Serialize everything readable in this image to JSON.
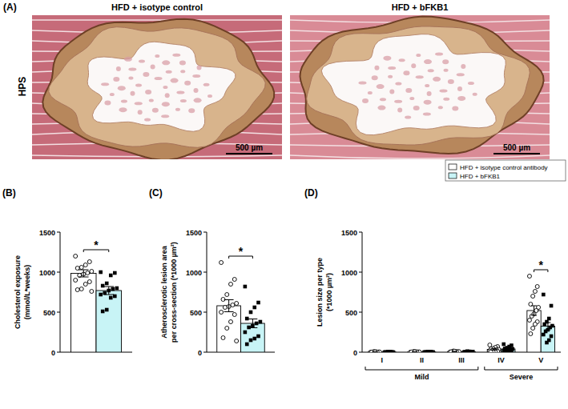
{
  "panel_a": {
    "label": "(A)",
    "stain": "HPS",
    "images": [
      {
        "title": "HFD + isotype control",
        "scale_bar": "500 µm"
      },
      {
        "title": "HFD + bFKB1",
        "scale_bar": "500 µm"
      }
    ]
  },
  "chart_data": [
    {
      "type": "bar",
      "panel_label": "(B)",
      "y_label": [
        "Cholesterol exposure",
        "(mmol/L*weeks)"
      ],
      "categories": [
        null
      ],
      "ylim": [
        0,
        1500
      ],
      "yticks": [
        0,
        500,
        1000,
        1500
      ],
      "tick_labels": "y",
      "grid": false,
      "legend": "right",
      "significance": [
        "*"
      ],
      "series": [
        {
          "name": "HFD + isotype control antibody",
          "color": "#ffffff",
          "marker": "circle-open",
          "values": [
            985
          ],
          "errors": [
            45
          ],
          "points": [
            [
              1200,
              1130,
              1090,
              1060,
              1050,
              1010,
              990,
              975,
              960,
              900,
              880,
              850,
              790,
              780,
              760
            ]
          ]
        },
        {
          "name": "HFD + bFKB1",
          "color": "#c8f4f6",
          "marker": "square",
          "values": [
            770
          ],
          "errors": [
            50
          ],
          "points": [
            [
              1000,
              990,
              960,
              860,
              830,
              800,
              790,
              770,
              740,
              720,
              700,
              680,
              530,
              510
            ]
          ]
        }
      ]
    },
    {
      "type": "bar",
      "panel_label": "(C)",
      "y_label": [
        "Atherosclerotic lesion area",
        "per cross-section (*1000 µm²)"
      ],
      "categories": [
        null
      ],
      "ylim": [
        0,
        1500
      ],
      "yticks": [
        0,
        500,
        1000,
        1500
      ],
      "tick_labels": "y",
      "grid": false,
      "significance": [
        "*"
      ],
      "series": [
        {
          "color": "#ffffff",
          "marker": "circle-open",
          "values": [
            580
          ],
          "errors": [
            75
          ],
          "points": [
            [
              1120,
              910,
              850,
              720,
              660,
              610,
              590,
              570,
              560,
              500,
              470,
              380,
              300,
              180,
              140
            ]
          ]
        },
        {
          "color": "#c8f4f6",
          "marker": "square",
          "values": [
            360
          ],
          "errors": [
            55
          ],
          "points": [
            [
              820,
              620,
              560,
              500,
              420,
              380,
              360,
              330,
              310,
              250,
              200,
              170,
              150,
              100
            ]
          ]
        }
      ]
    },
    {
      "type": "bar",
      "panel_label": "(D)",
      "y_label": [
        "Lesion size per type",
        "(*1000 µm²)"
      ],
      "categories": [
        "I",
        "II",
        "III",
        "IV",
        "V"
      ],
      "ylim": [
        0,
        1500
      ],
      "yticks": [
        0,
        500,
        1000,
        1500
      ],
      "grid": false,
      "significance": [
        null,
        null,
        null,
        null,
        "*"
      ],
      "groups": [
        {
          "label": "Mild",
          "categories": [
            "I",
            "II",
            "III"
          ]
        },
        {
          "label": "Severe",
          "categories": [
            "IV",
            "V"
          ]
        }
      ],
      "series": [
        {
          "color": "#ffffff",
          "marker": "circle-open",
          "values": [
            3,
            4,
            8,
            35,
            520
          ],
          "errors": [
            1,
            1,
            2,
            8,
            60
          ],
          "points": [
            [
              0,
              2,
              5,
              8,
              1,
              3,
              0,
              4
            ],
            [
              0,
              3,
              6,
              9,
              2,
              4,
              1,
              5
            ],
            [
              2,
              5,
              10,
              15,
              6,
              8,
              4,
              12
            ],
            [
              90,
              70,
              60,
              45,
              40,
              35,
              30,
              25,
              20,
              15,
              10,
              8,
              5,
              3
            ],
            [
              950,
              820,
              760,
              700,
              600,
              560,
              520,
              480,
              450,
              400,
              380,
              350,
              300,
              230
            ]
          ]
        },
        {
          "color": "#c8f4f6",
          "marker": "square",
          "values": [
            2,
            3,
            6,
            40,
            325
          ],
          "errors": [
            1,
            1,
            2,
            9,
            45
          ],
          "points": [
            [
              0,
              1,
              4,
              6,
              2,
              0,
              3,
              1
            ],
            [
              0,
              2,
              5,
              7,
              3,
              1,
              4,
              2
            ],
            [
              1,
              4,
              9,
              12,
              5,
              7,
              3,
              6
            ],
            [
              100,
              85,
              70,
              55,
              45,
              40,
              35,
              30,
              25,
              20,
              15,
              10,
              5
            ],
            [
              720,
              580,
              420,
              380,
              350,
              330,
              310,
              280,
              260,
              220,
              200,
              150,
              120
            ]
          ]
        }
      ]
    }
  ]
}
